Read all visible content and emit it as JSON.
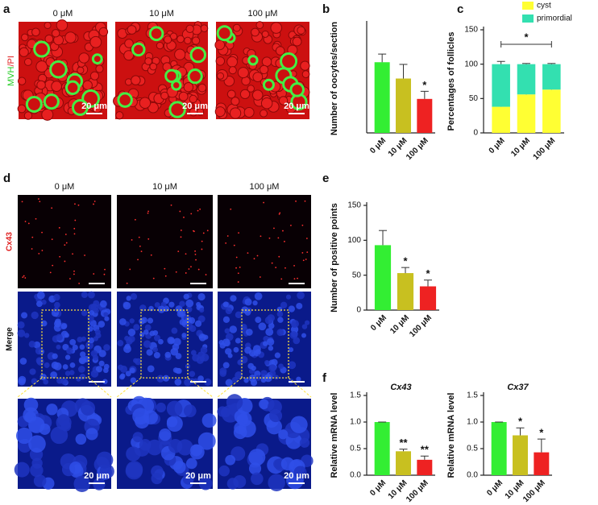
{
  "panel_a": {
    "letter": "a",
    "columns": [
      "0 μM",
      "10 μM",
      "100 μM"
    ],
    "stain_parts": [
      "MVH",
      "/PI"
    ],
    "scale_labels": [
      "20 μm",
      "20 μm",
      "20 μm"
    ]
  },
  "panel_d": {
    "letter": "d",
    "columns": [
      "0 μM",
      "10 μM",
      "100 μM"
    ],
    "row_labels": [
      "Cx43",
      "Merge"
    ],
    "scale_labels": [
      "20 μm",
      "20 μm",
      "20 μm"
    ]
  },
  "chart_data": [
    {
      "type": "bar",
      "letter": "b",
      "ylabel": "Number of oocytes/section",
      "categories": [
        "0 μM",
        "10 μM",
        "100 μM"
      ],
      "values": [
        260,
        200,
        125
      ],
      "errors": [
        30,
        52,
        28
      ],
      "colors": [
        "#33ee33",
        "#c8c020",
        "#ee2222"
      ],
      "ylim": [
        0,
        400
      ],
      "annotations": [
        {
          "index": 2,
          "label": "*"
        }
      ]
    },
    {
      "type": "stacked_bar",
      "letter": "c",
      "ylabel": "Percentages of follicles",
      "categories": [
        "0 μM",
        "10 μM",
        "100 μM"
      ],
      "series": [
        {
          "name": "cyst",
          "color": "#ffff33",
          "values": [
            38,
            56,
            63
          ],
          "errors": [
            4,
            1,
            1
          ]
        },
        {
          "name": "primordial",
          "color": "#33e0b0",
          "values": [
            62,
            44,
            37
          ],
          "errors": [
            4,
            1,
            1
          ]
        }
      ],
      "ylim": [
        0,
        150
      ],
      "yticks": [
        0,
        50,
        100,
        150
      ],
      "legend": "top-right",
      "bracket_label": "*"
    },
    {
      "type": "bar",
      "letter": "e",
      "ylabel": "Number of positive points",
      "categories": [
        "0 μM",
        "10 μM",
        "100 μM"
      ],
      "values": [
        93,
        53,
        34
      ],
      "errors": [
        21,
        8,
        9
      ],
      "colors": [
        "#33ee33",
        "#c8c020",
        "#ee2222"
      ],
      "ylim": [
        0,
        150
      ],
      "yticks": [
        0,
        50,
        100,
        150
      ],
      "annotations": [
        {
          "index": 1,
          "label": "*"
        },
        {
          "index": 2,
          "label": "*"
        }
      ]
    },
    {
      "type": "bar",
      "letter": "f",
      "title": "Cx43",
      "ylabel": "Relative mRNA level",
      "categories": [
        "0 μM",
        "10 μM",
        "100 μM"
      ],
      "values": [
        1,
        0.45,
        0.29
      ],
      "errors": [
        0,
        0.04,
        0.07
      ],
      "colors": [
        "#33ee33",
        "#c8c020",
        "#ee2222"
      ],
      "ylim": [
        0,
        1.5
      ],
      "yticks": [
        {
          "value": 0,
          "label": "0.0"
        },
        0.5,
        {
          "value": 1,
          "label": "1.0"
        },
        1.5
      ],
      "annotations": [
        {
          "index": 1,
          "label": "**"
        },
        {
          "index": 2,
          "label": "**"
        }
      ]
    },
    {
      "type": "bar",
      "title": "Cx37",
      "ylabel": "Relative mRNA level",
      "categories": [
        "0 μM",
        "10 μM",
        "100 μM"
      ],
      "values": [
        1,
        0.75,
        0.43
      ],
      "errors": [
        0,
        0.14,
        0.25
      ],
      "colors": [
        "#33ee33",
        "#c8c020",
        "#ee2222"
      ],
      "ylim": [
        0,
        1.5
      ],
      "yticks": [
        {
          "value": 0,
          "label": "0.0"
        },
        0.5,
        {
          "value": 1,
          "label": "1.0"
        },
        1.5
      ],
      "annotations": [
        {
          "index": 1,
          "label": "*"
        },
        {
          "index": 2,
          "label": "*"
        }
      ]
    }
  ]
}
